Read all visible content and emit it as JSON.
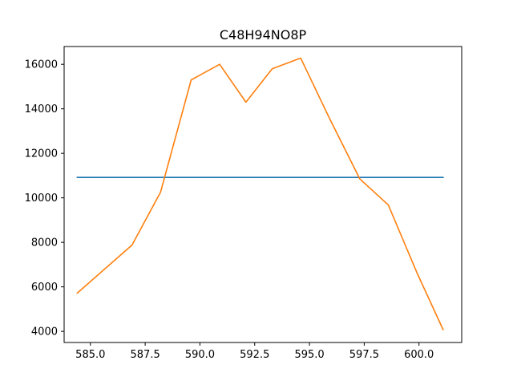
{
  "chart_data": {
    "type": "line",
    "title": "C48H94NO8P",
    "xlabel": "",
    "ylabel": "",
    "xlim": [
      583.8,
      601.95
    ],
    "ylim": [
      3500,
      16800
    ],
    "grid": false,
    "x_ticks": [
      585.0,
      587.5,
      590.0,
      592.5,
      595.0,
      597.5,
      600.0
    ],
    "x_tick_labels": [
      "585.0",
      "587.5",
      "590.0",
      "592.5",
      "595.0",
      "597.5",
      "600.0"
    ],
    "y_ticks": [
      4000,
      6000,
      8000,
      10000,
      12000,
      14000,
      16000
    ],
    "y_tick_labels": [
      "4000",
      "6000",
      "8000",
      "10000",
      "12000",
      "14000",
      "16000"
    ],
    "series": [
      {
        "color": "#1f77b4",
        "x": [
          584.4,
          601.1
        ],
        "y": [
          10920,
          10920
        ]
      },
      {
        "color": "#ff7f0e",
        "x": [
          584.4,
          586.9,
          588.2,
          589.6,
          590.9,
          592.1,
          593.3,
          594.6,
          595.9,
          597.3,
          598.6,
          599.9,
          601.1
        ],
        "y": [
          5720,
          7880,
          10250,
          15300,
          16000,
          14300,
          15800,
          16280,
          13600,
          10850,
          9680,
          6650,
          4080
        ]
      }
    ]
  }
}
